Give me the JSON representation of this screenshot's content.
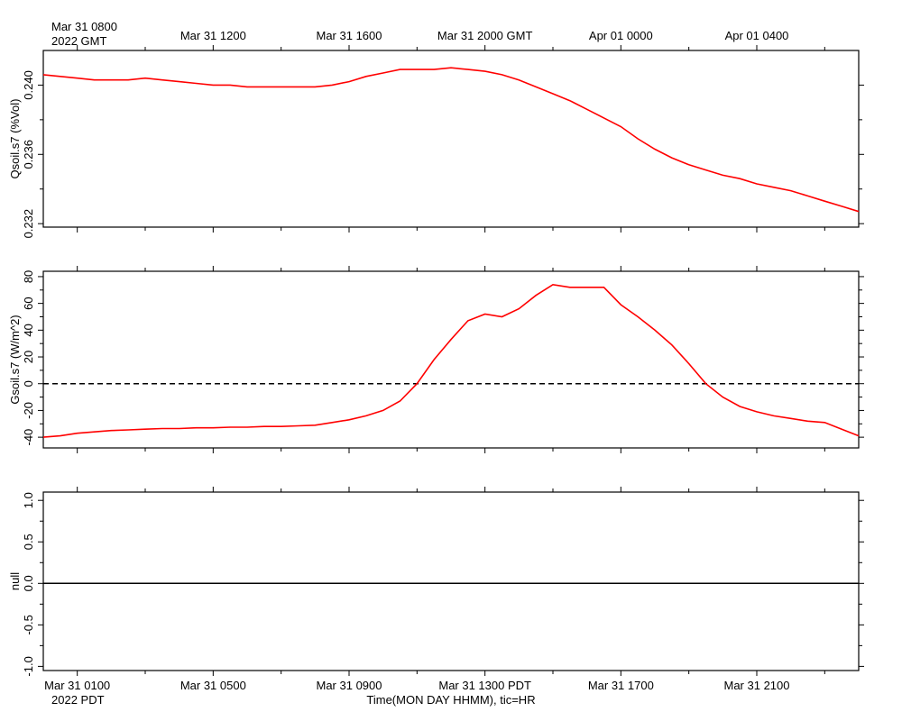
{
  "top_axis": {
    "ticks": [
      {
        "hour": 8,
        "label": "Mar 31 0800"
      },
      {
        "hour": 12,
        "label": "Mar 31 1200"
      },
      {
        "hour": 16,
        "label": "Mar 31 1600"
      },
      {
        "hour": 20,
        "label": "Mar 31 2000 GMT"
      },
      {
        "hour": 24,
        "label": "Apr 01 0000"
      },
      {
        "hour": 28,
        "label": "Apr 01 0400"
      }
    ],
    "year_label": "2022 GMT"
  },
  "bottom_axis": {
    "ticks": [
      {
        "hour": 1,
        "label": "Mar 31 0100"
      },
      {
        "hour": 5,
        "label": "Mar 31 0500"
      },
      {
        "hour": 9,
        "label": "Mar 31 0900"
      },
      {
        "hour": 13,
        "label": "Mar 31 1300 PDT"
      },
      {
        "hour": 17,
        "label": "Mar 31 1700"
      },
      {
        "hour": 21,
        "label": "Mar 31 2100"
      }
    ],
    "year_label": "2022 PDT",
    "xlabel": "Time(MON DAY HHMM), tic=HR"
  },
  "colors": {
    "series": "#ff0000",
    "axis": "#000000"
  },
  "chart_data": [
    {
      "type": "line",
      "name": "qsoil",
      "ylabel": "Qsoil.s7 (%Vol)",
      "xlim": [
        0,
        24
      ],
      "ylim": [
        0.2318,
        0.242
      ],
      "yticks": [
        0.232,
        0.236,
        0.24
      ],
      "ytick_labels": [
        "0.232",
        "0.236",
        "0.240"
      ],
      "x_unit": "hours since Mar 31 0000 PDT",
      "series": [
        {
          "x": [
            0,
            0.5,
            1,
            1.5,
            2,
            2.5,
            3,
            3.5,
            4,
            4.5,
            5,
            5.5,
            6,
            6.5,
            7,
            7.5,
            8,
            8.5,
            9,
            9.5,
            10,
            10.5,
            11,
            11.5,
            12,
            12.5,
            13,
            13.5,
            14,
            14.5,
            15,
            15.5,
            16,
            16.5,
            17,
            17.5,
            18,
            18.5,
            19,
            19.5,
            20,
            20.5,
            21,
            21.5,
            22,
            22.5,
            23,
            23.5,
            24
          ],
          "values": [
            0.2406,
            0.2405,
            0.2404,
            0.2403,
            0.2403,
            0.2403,
            0.2404,
            0.2403,
            0.2402,
            0.2401,
            0.24,
            0.24,
            0.2399,
            0.2399,
            0.2399,
            0.2399,
            0.2399,
            0.24,
            0.2402,
            0.2405,
            0.2407,
            0.2409,
            0.2409,
            0.2409,
            0.241,
            0.2409,
            0.2408,
            0.2406,
            0.2403,
            0.2399,
            0.2395,
            0.2391,
            0.2386,
            0.2381,
            0.2376,
            0.2369,
            0.2363,
            0.2358,
            0.2354,
            0.2351,
            0.2348,
            0.2346,
            0.2343,
            0.2341,
            0.2339,
            0.2336,
            0.2333,
            0.233,
            0.2327
          ]
        }
      ]
    },
    {
      "type": "line",
      "name": "gsoil",
      "ylabel": "Gsoil.s7 (W/m^2)",
      "xlim": [
        0,
        24
      ],
      "ylim": [
        -48,
        84
      ],
      "yticks": [
        -40,
        -20,
        0,
        20,
        40,
        60,
        80
      ],
      "ytick_labels": [
        "-40",
        "-20",
        "0",
        "20",
        "40",
        "60",
        "80"
      ],
      "reference_line": 0,
      "x_unit": "hours since Mar 31 0000 PDT",
      "series": [
        {
          "x": [
            0,
            0.5,
            1,
            1.5,
            2,
            2.5,
            3,
            3.5,
            4,
            4.5,
            5,
            5.5,
            6,
            6.5,
            7,
            7.5,
            8,
            8.5,
            9,
            9.5,
            10,
            10.5,
            11,
            11.5,
            12,
            12.5,
            13,
            13.5,
            14,
            14.5,
            15,
            15.5,
            16,
            16.5,
            17,
            17.5,
            18,
            18.5,
            19,
            19.5,
            20,
            20.5,
            21,
            21.5,
            22,
            22.5,
            23,
            23.5,
            24
          ],
          "values": [
            -40,
            -39,
            -37,
            -36,
            -35,
            -34.5,
            -34,
            -33.5,
            -33.5,
            -33,
            -33,
            -32.5,
            -32.5,
            -32,
            -32,
            -31.5,
            -31,
            -29,
            -27,
            -24,
            -20,
            -13,
            0,
            18,
            33,
            47,
            52,
            50,
            56,
            66,
            74,
            72,
            72,
            72,
            59,
            50,
            40,
            29,
            15,
            0,
            -10,
            -17,
            -21,
            -24,
            -26,
            -28,
            -29,
            -34,
            -39
          ]
        }
      ]
    },
    {
      "type": "line",
      "name": "null",
      "ylabel": "null",
      "xlim": [
        0,
        24
      ],
      "ylim": [
        -1.05,
        1.1
      ],
      "yticks": [
        -1.0,
        -0.5,
        0.0,
        0.5,
        1.0
      ],
      "ytick_labels": [
        "-1.0",
        "-0.5",
        "0.0",
        "0.5",
        "1.0"
      ],
      "reference_line": 0
    }
  ]
}
